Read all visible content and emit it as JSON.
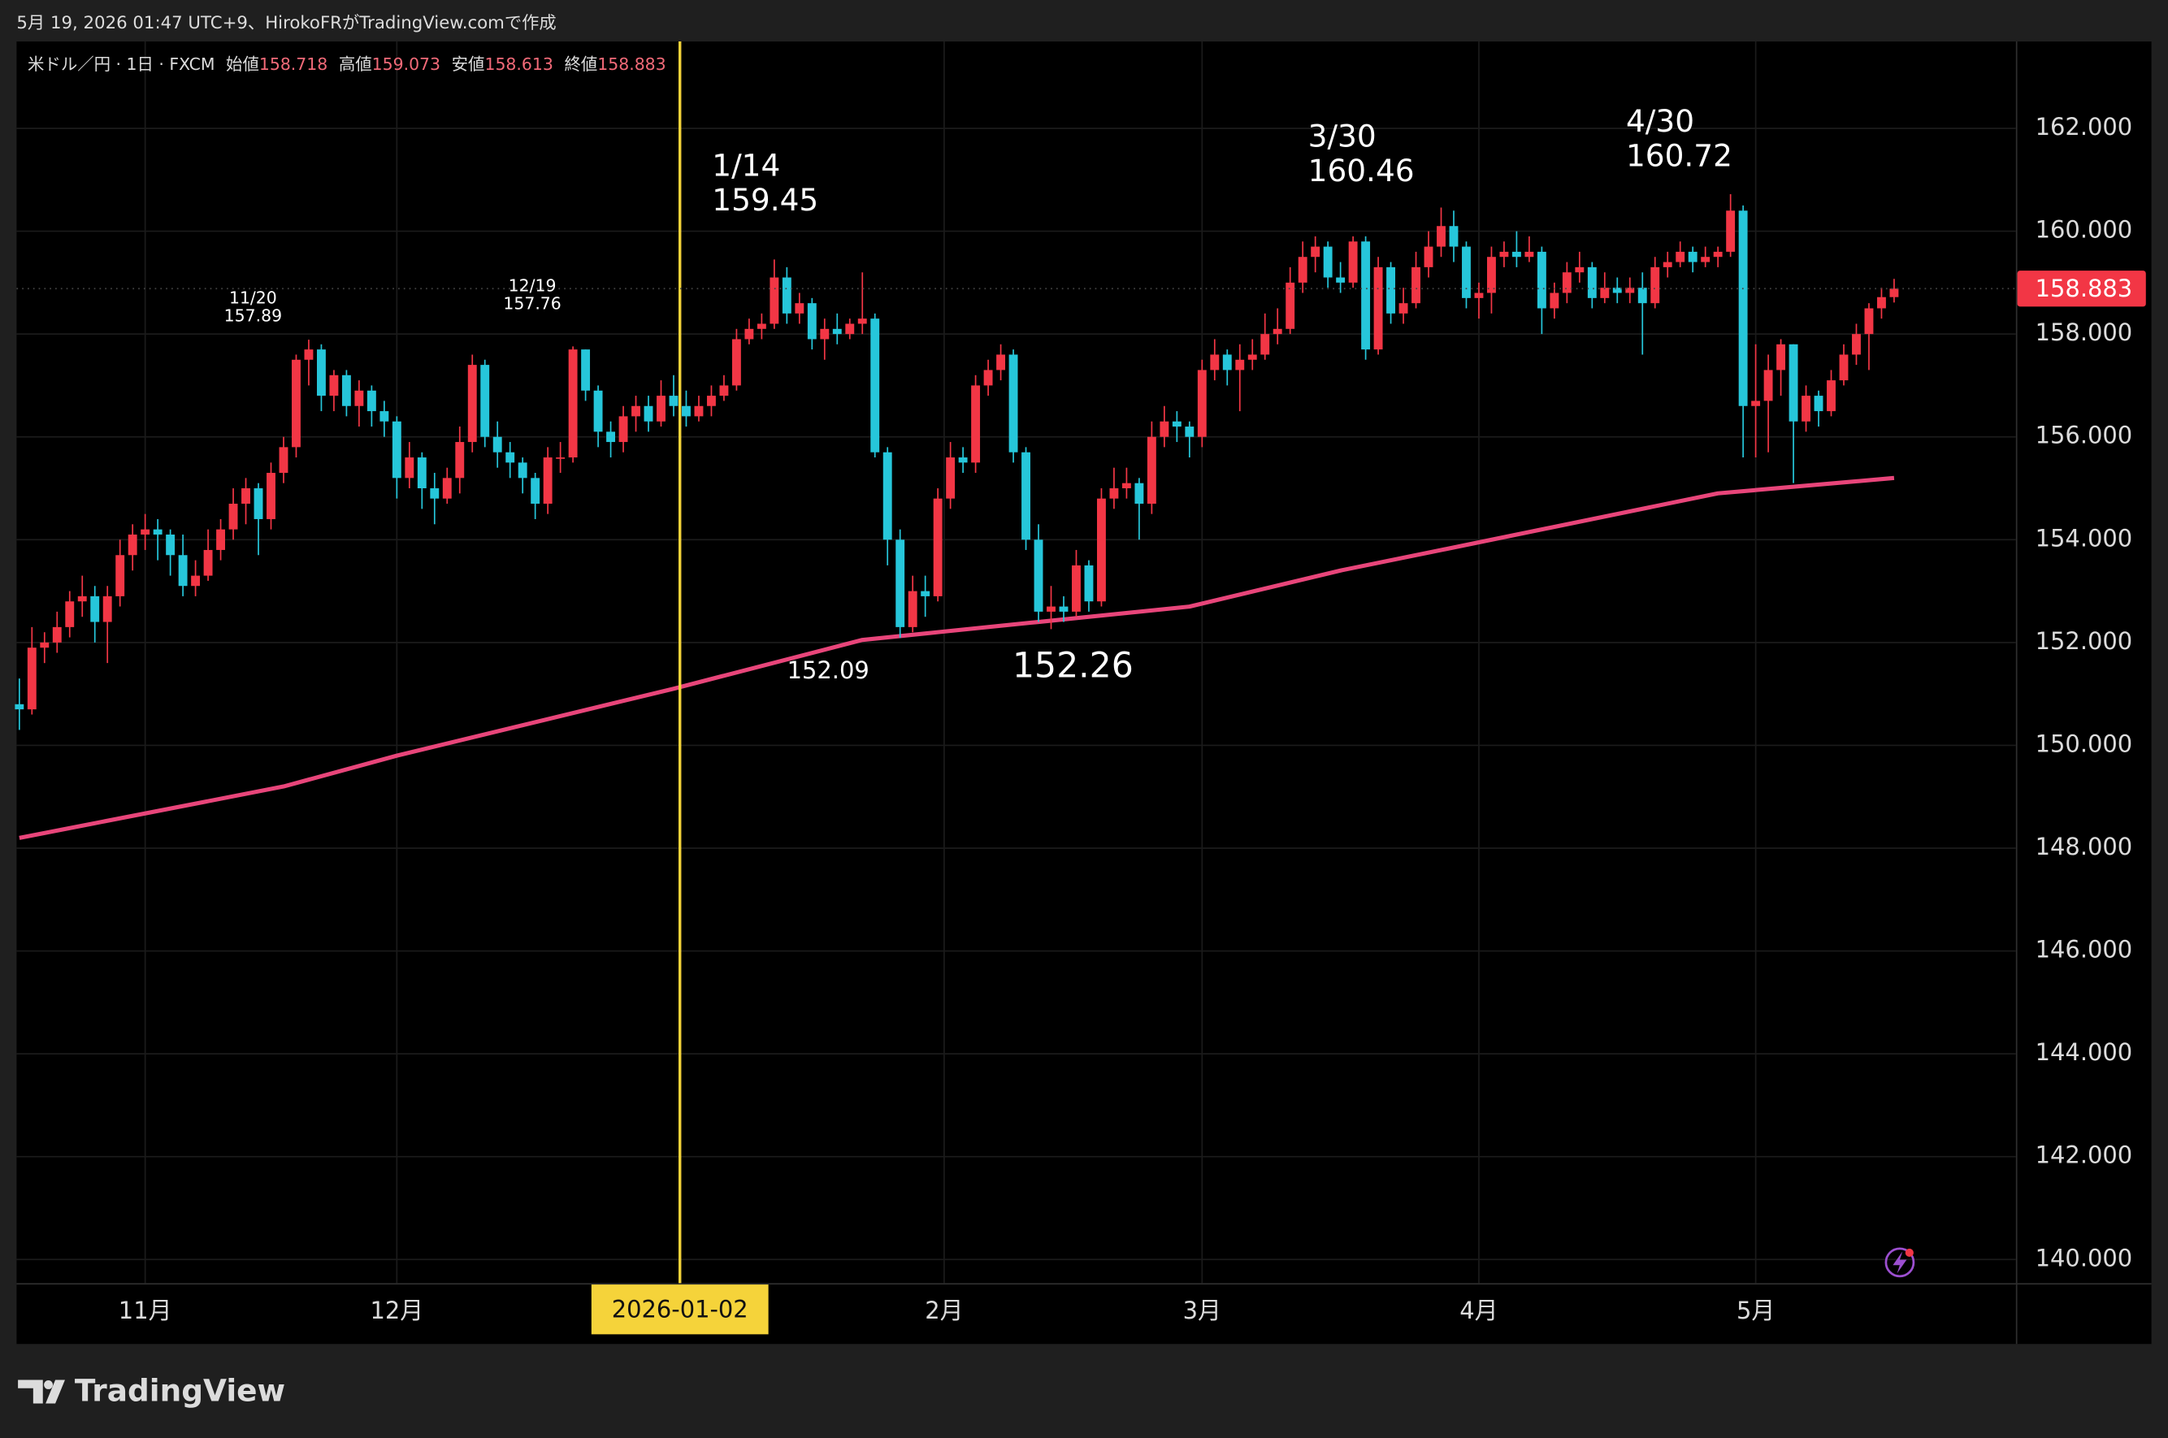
{
  "header": "5月 19, 2026 01:47 UTC+9、HirokoFRがTradingView.comで作成",
  "logo": "TradingView",
  "chart_data": {
    "type": "candlestick",
    "symbol": "米ドル／円 · 1日 · FXCM",
    "ohlc_labels": [
      "始値",
      "高値",
      "安値",
      "終値"
    ],
    "up_color": "#f23645",
    "down_color": "#26c6da",
    "ylim": [
      139.54,
      163.69
    ],
    "yticks": [
      {
        "value": 140,
        "label": "140.000"
      },
      {
        "value": 142,
        "label": "142.000"
      },
      {
        "value": 144,
        "label": "144.000"
      },
      {
        "value": 146,
        "label": "146.000"
      },
      {
        "value": 148,
        "label": "148.000"
      },
      {
        "value": 150,
        "label": "150.000"
      },
      {
        "value": 152,
        "label": "152.000"
      },
      {
        "value": 154,
        "label": "154.000"
      },
      {
        "value": 156,
        "label": "156.000"
      },
      {
        "value": 158,
        "label": "158.000"
      },
      {
        "value": 160,
        "label": "160.000"
      },
      {
        "value": 162,
        "label": "162.000"
      }
    ],
    "xticks": [
      {
        "value": 10,
        "label": "11月"
      },
      {
        "value": 30,
        "label": "12月"
      },
      {
        "value": 73.5,
        "label": "2月"
      },
      {
        "value": 94,
        "label": "3月"
      },
      {
        "value": 116,
        "label": "4月"
      },
      {
        "value": 138,
        "label": "5月"
      }
    ],
    "crosshair": {
      "value": 52.5,
      "label": "2026-01-02"
    },
    "grid": true,
    "annotations": [
      "11/20",
      "12/19",
      "1/14",
      "3/30",
      "4/30"
    ],
    "ma": {
      "color": "#e8457a",
      "x": [
        0,
        21,
        30,
        52,
        67,
        73,
        81,
        93,
        105,
        113,
        135,
        149
      ],
      "values": [
        148.2,
        149.2,
        149.8,
        151.1,
        152.05,
        152.2,
        152.4,
        152.7,
        153.4,
        153.8,
        154.9,
        155.2
      ]
    },
    "ohlc": [
      [
        150.8,
        151.3,
        150.3,
        150.7
      ],
      [
        150.7,
        152.3,
        150.6,
        151.9
      ],
      [
        151.9,
        152.2,
        151.6,
        152.0
      ],
      [
        152.0,
        152.6,
        151.8,
        152.3
      ],
      [
        152.3,
        153.0,
        152.1,
        152.8
      ],
      [
        152.8,
        153.3,
        152.5,
        152.9
      ],
      [
        152.9,
        153.1,
        152.0,
        152.4
      ],
      [
        152.4,
        153.1,
        151.6,
        152.9
      ],
      [
        152.9,
        154.0,
        152.7,
        153.7
      ],
      [
        153.7,
        154.3,
        153.4,
        154.1
      ],
      [
        154.1,
        154.5,
        153.8,
        154.2
      ],
      [
        154.2,
        154.4,
        153.6,
        154.1
      ],
      [
        154.1,
        154.2,
        153.3,
        153.7
      ],
      [
        153.7,
        154.1,
        152.9,
        153.1
      ],
      [
        153.1,
        153.6,
        152.9,
        153.3
      ],
      [
        153.3,
        154.2,
        153.2,
        153.8
      ],
      [
        153.8,
        154.4,
        153.6,
        154.2
      ],
      [
        154.2,
        155.0,
        154.0,
        154.7
      ],
      [
        154.7,
        155.2,
        154.3,
        155.0
      ],
      [
        155.0,
        155.1,
        153.7,
        154.4
      ],
      [
        154.4,
        155.5,
        154.2,
        155.3
      ],
      [
        155.3,
        156.0,
        155.1,
        155.8
      ],
      [
        155.8,
        157.6,
        155.6,
        157.5
      ],
      [
        157.5,
        157.89,
        157.0,
        157.7
      ],
      [
        157.7,
        157.8,
        156.5,
        156.8
      ],
      [
        156.8,
        157.3,
        156.5,
        157.2
      ],
      [
        157.2,
        157.3,
        156.4,
        156.6
      ],
      [
        156.6,
        157.1,
        156.2,
        156.9
      ],
      [
        156.9,
        157.0,
        156.2,
        156.5
      ],
      [
        156.5,
        156.7,
        156.0,
        156.3
      ],
      [
        156.3,
        156.4,
        154.8,
        155.2
      ],
      [
        155.2,
        155.9,
        155.0,
        155.6
      ],
      [
        155.6,
        155.7,
        154.6,
        155.0
      ],
      [
        155.0,
        155.3,
        154.3,
        154.8
      ],
      [
        154.8,
        155.4,
        154.7,
        155.2
      ],
      [
        155.2,
        156.2,
        154.9,
        155.9
      ],
      [
        155.9,
        157.6,
        155.7,
        157.4
      ],
      [
        157.4,
        157.5,
        155.8,
        156.0
      ],
      [
        156.0,
        156.3,
        155.4,
        155.7
      ],
      [
        155.7,
        155.9,
        155.2,
        155.5
      ],
      [
        155.5,
        155.6,
        154.9,
        155.2
      ],
      [
        155.2,
        155.3,
        154.4,
        154.7
      ],
      [
        154.7,
        155.8,
        154.5,
        155.6
      ],
      [
        155.6,
        155.9,
        155.3,
        155.6
      ],
      [
        155.6,
        157.76,
        155.5,
        157.7
      ],
      [
        157.7,
        157.7,
        156.7,
        156.9
      ],
      [
        156.9,
        157.0,
        155.8,
        156.1
      ],
      [
        156.1,
        156.3,
        155.6,
        155.9
      ],
      [
        155.9,
        156.6,
        155.7,
        156.4
      ],
      [
        156.4,
        156.8,
        156.1,
        156.6
      ],
      [
        156.6,
        156.8,
        156.1,
        156.3
      ],
      [
        156.3,
        157.1,
        156.2,
        156.8
      ],
      [
        156.8,
        157.2,
        156.4,
        156.6
      ],
      [
        156.6,
        156.9,
        156.2,
        156.4
      ],
      [
        156.4,
        156.8,
        156.3,
        156.6
      ],
      [
        156.6,
        157.0,
        156.4,
        156.8
      ],
      [
        156.8,
        157.2,
        156.7,
        157.0
      ],
      [
        157.0,
        158.1,
        156.9,
        157.9
      ],
      [
        157.9,
        158.3,
        157.8,
        158.1
      ],
      [
        158.1,
        158.4,
        157.9,
        158.2
      ],
      [
        158.2,
        159.45,
        158.1,
        159.1
      ],
      [
        159.1,
        159.3,
        158.2,
        158.4
      ],
      [
        158.4,
        158.8,
        158.2,
        158.6
      ],
      [
        158.6,
        158.7,
        157.7,
        157.9
      ],
      [
        157.9,
        158.3,
        157.5,
        158.1
      ],
      [
        158.1,
        158.4,
        157.8,
        158.0
      ],
      [
        158.0,
        158.3,
        157.9,
        158.2
      ],
      [
        158.2,
        159.2,
        158.0,
        158.3
      ],
      [
        158.3,
        158.4,
        155.6,
        155.7
      ],
      [
        155.7,
        155.8,
        153.5,
        154.0
      ],
      [
        154.0,
        154.2,
        152.09,
        152.3
      ],
      [
        152.3,
        153.3,
        152.2,
        153.0
      ],
      [
        153.0,
        153.3,
        152.5,
        152.9
      ],
      [
        152.9,
        155.0,
        152.8,
        154.8
      ],
      [
        154.8,
        155.9,
        154.6,
        155.6
      ],
      [
        155.6,
        155.8,
        155.3,
        155.5
      ],
      [
        155.5,
        157.2,
        155.3,
        157.0
      ],
      [
        157.0,
        157.5,
        156.8,
        157.3
      ],
      [
        157.3,
        157.8,
        157.1,
        157.6
      ],
      [
        157.6,
        157.7,
        155.5,
        155.7
      ],
      [
        155.7,
        155.8,
        153.8,
        154.0
      ],
      [
        154.0,
        154.3,
        152.4,
        152.6
      ],
      [
        152.6,
        153.1,
        152.26,
        152.7
      ],
      [
        152.7,
        152.9,
        152.4,
        152.6
      ],
      [
        152.6,
        153.8,
        152.5,
        153.5
      ],
      [
        153.5,
        153.6,
        152.6,
        152.8
      ],
      [
        152.8,
        155.0,
        152.7,
        154.8
      ],
      [
        154.8,
        155.4,
        154.6,
        155.0
      ],
      [
        155.0,
        155.4,
        154.8,
        155.1
      ],
      [
        155.1,
        155.2,
        154.0,
        154.7
      ],
      [
        154.7,
        156.3,
        154.5,
        156.0
      ],
      [
        156.0,
        156.6,
        155.8,
        156.3
      ],
      [
        156.3,
        156.5,
        155.9,
        156.2
      ],
      [
        156.2,
        156.3,
        155.6,
        156.0
      ],
      [
        156.0,
        157.5,
        155.8,
        157.3
      ],
      [
        157.3,
        157.9,
        157.1,
        157.6
      ],
      [
        157.6,
        157.7,
        157.0,
        157.3
      ],
      [
        157.3,
        157.8,
        156.5,
        157.5
      ],
      [
        157.5,
        157.9,
        157.3,
        157.6
      ],
      [
        157.6,
        158.4,
        157.5,
        158.0
      ],
      [
        158.0,
        158.5,
        157.8,
        158.1
      ],
      [
        158.1,
        159.3,
        158.0,
        159.0
      ],
      [
        159.0,
        159.8,
        158.8,
        159.5
      ],
      [
        159.5,
        159.9,
        159.2,
        159.7
      ],
      [
        159.7,
        159.8,
        158.9,
        159.1
      ],
      [
        159.1,
        159.4,
        158.8,
        159.0
      ],
      [
        159.0,
        159.9,
        158.9,
        159.8
      ],
      [
        159.8,
        159.9,
        157.5,
        157.7
      ],
      [
        157.7,
        159.5,
        157.6,
        159.3
      ],
      [
        159.3,
        159.4,
        158.2,
        158.4
      ],
      [
        158.4,
        158.9,
        158.2,
        158.6
      ],
      [
        158.6,
        159.6,
        158.5,
        159.3
      ],
      [
        159.3,
        160.0,
        159.1,
        159.7
      ],
      [
        159.7,
        160.46,
        159.5,
        160.1
      ],
      [
        160.1,
        160.4,
        159.4,
        159.7
      ],
      [
        159.7,
        159.8,
        158.5,
        158.7
      ],
      [
        158.7,
        159.0,
        158.3,
        158.8
      ],
      [
        158.8,
        159.7,
        158.4,
        159.5
      ],
      [
        159.5,
        159.8,
        159.3,
        159.6
      ],
      [
        159.6,
        160.0,
        159.3,
        159.5
      ],
      [
        159.5,
        159.9,
        159.4,
        159.6
      ],
      [
        159.6,
        159.7,
        158.0,
        158.5
      ],
      [
        158.5,
        159.0,
        158.3,
        158.8
      ],
      [
        158.8,
        159.4,
        158.6,
        159.2
      ],
      [
        159.2,
        159.6,
        159.0,
        159.3
      ],
      [
        159.3,
        159.4,
        158.5,
        158.7
      ],
      [
        158.7,
        159.2,
        158.6,
        158.9
      ],
      [
        158.9,
        159.1,
        158.6,
        158.8
      ],
      [
        158.8,
        159.1,
        158.6,
        158.9
      ],
      [
        158.9,
        159.2,
        157.6,
        158.6
      ],
      [
        158.6,
        159.5,
        158.5,
        159.3
      ],
      [
        159.3,
        159.6,
        159.1,
        159.4
      ],
      [
        159.4,
        159.8,
        159.3,
        159.6
      ],
      [
        159.6,
        159.7,
        159.2,
        159.4
      ],
      [
        159.4,
        159.7,
        159.3,
        159.5
      ],
      [
        159.5,
        159.7,
        159.3,
        159.6
      ],
      [
        159.6,
        160.72,
        159.5,
        160.4
      ],
      [
        160.4,
        160.5,
        155.6,
        156.6
      ],
      [
        156.6,
        157.8,
        155.6,
        156.7
      ],
      [
        156.7,
        157.6,
        155.7,
        157.3
      ],
      [
        157.3,
        157.9,
        156.8,
        157.8
      ],
      [
        157.8,
        157.8,
        155.1,
        156.3
      ],
      [
        156.3,
        157.0,
        156.1,
        156.8
      ],
      [
        156.8,
        156.9,
        156.2,
        156.5
      ],
      [
        156.5,
        157.3,
        156.4,
        157.1
      ],
      [
        157.1,
        157.8,
        157.0,
        157.6
      ],
      [
        157.6,
        158.2,
        157.4,
        158.0
      ],
      [
        158.0,
        158.6,
        157.3,
        158.5
      ],
      [
        158.5,
        158.9,
        158.3,
        158.718
      ],
      [
        158.718,
        159.073,
        158.613,
        158.883
      ]
    ]
  }
}
